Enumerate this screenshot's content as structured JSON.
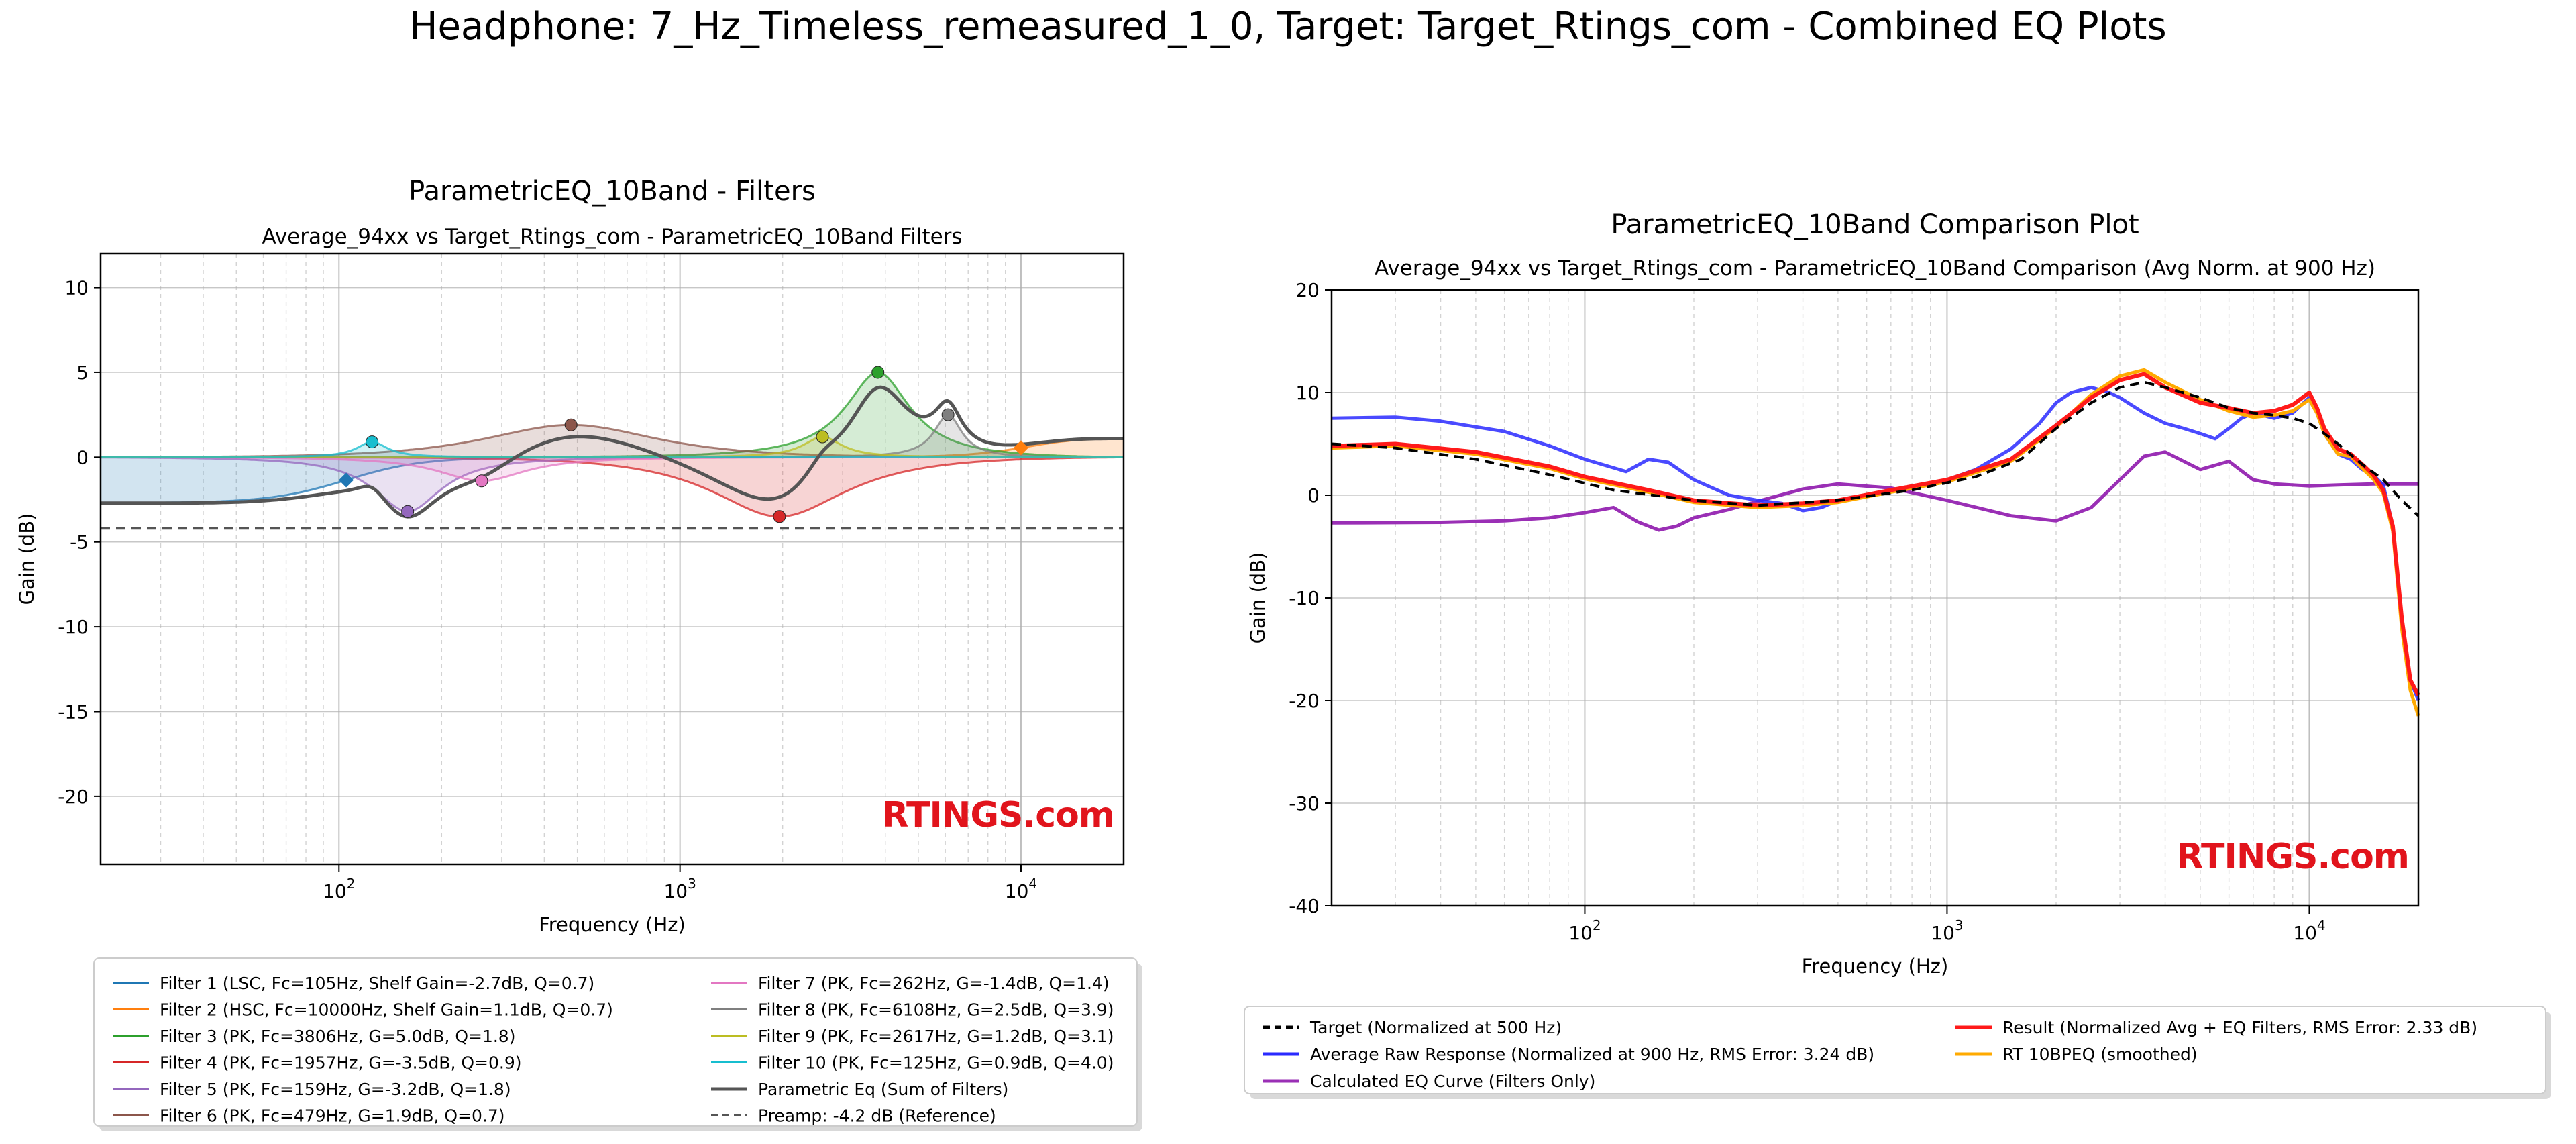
{
  "figure": {
    "title": "Headphone: 7_Hz_Timeless_remeasured_1_0, Target: Target_Rtings_com - Combined EQ Plots",
    "watermark": "RTINGS.com",
    "watermark_color": "#e1141c"
  },
  "chart_data": [
    {
      "type": "line",
      "title": "ParametricEQ_10Band - Filters",
      "subtitle": "Average_94xx vs Target_Rtings_com - ParametricEQ_10Band Filters",
      "xlabel": "Frequency (Hz)",
      "ylabel": "Gain (dB)",
      "xscale": "log",
      "xlim": [
        20,
        20000
      ],
      "ylim": [
        -24,
        12
      ],
      "xticks": [
        {
          "value": 100,
          "base": "10",
          "exp": "2"
        },
        {
          "value": 1000,
          "base": "10",
          "exp": "3"
        },
        {
          "value": 10000,
          "base": "10",
          "exp": "4"
        }
      ],
      "yticks": [
        10,
        5,
        0,
        -5,
        -10,
        -15,
        -20
      ],
      "grid": true,
      "legend_position": "below",
      "legend_columns": 2,
      "filters": [
        {
          "label": "Filter 1 (LSC, Fc=105Hz, Shelf Gain=-2.7dB, Q=0.7)",
          "type": "LSC",
          "fc": 105,
          "gain": -2.7,
          "q": 0.7,
          "color": "#1f77b4"
        },
        {
          "label": "Filter 2 (HSC, Fc=10000Hz, Shelf Gain=1.1dB, Q=0.7)",
          "type": "HSC",
          "fc": 10000,
          "gain": 1.1,
          "q": 0.7,
          "color": "#ff7f0e"
        },
        {
          "label": "Filter 3 (PK, Fc=3806Hz, G=5.0dB, Q=1.8)",
          "type": "PK",
          "fc": 3806,
          "gain": 5.0,
          "q": 1.8,
          "color": "#2ca02c"
        },
        {
          "label": "Filter 4 (PK, Fc=1957Hz, G=-3.5dB, Q=0.9)",
          "type": "PK",
          "fc": 1957,
          "gain": -3.5,
          "q": 0.9,
          "color": "#d62728"
        },
        {
          "label": "Filter 5 (PK, Fc=159Hz, G=-3.2dB, Q=1.8)",
          "type": "PK",
          "fc": 159,
          "gain": -3.2,
          "q": 1.8,
          "color": "#9467bd"
        },
        {
          "label": "Filter 6 (PK, Fc=479Hz, G=1.9dB, Q=0.7)",
          "type": "PK",
          "fc": 479,
          "gain": 1.9,
          "q": 0.7,
          "color": "#8c564b"
        },
        {
          "label": "Filter 7 (PK, Fc=262Hz, G=-1.4dB, Q=1.4)",
          "type": "PK",
          "fc": 262,
          "gain": -1.4,
          "q": 1.4,
          "color": "#e377c2"
        },
        {
          "label": "Filter 8 (PK, Fc=6108Hz, G=2.5dB, Q=3.9)",
          "type": "PK",
          "fc": 6108,
          "gain": 2.5,
          "q": 3.9,
          "color": "#7f7f7f"
        },
        {
          "label": "Filter 9 (PK, Fc=2617Hz, G=1.2dB, Q=3.1)",
          "type": "PK",
          "fc": 2617,
          "gain": 1.2,
          "q": 3.1,
          "color": "#bcbd22"
        },
        {
          "label": "Filter 10 (PK, Fc=125Hz, G=0.9dB, Q=4.0)",
          "type": "PK",
          "fc": 125,
          "gain": 0.9,
          "q": 4.0,
          "color": "#17becf"
        }
      ],
      "sum_label": "Parametric Eq (Sum of Filters)",
      "sum_color": "#555555",
      "preamp_label": "Preamp: -4.2 dB (Reference)",
      "preamp_db": -4.2,
      "preamp_color": "#555555"
    },
    {
      "type": "line",
      "title": "ParametricEQ_10Band Comparison Plot",
      "subtitle": "Average_94xx vs Target_Rtings_com - ParametricEQ_10Band Comparison (Avg Norm. at 900 Hz)",
      "xlabel": "Frequency (Hz)",
      "ylabel": "Gain (dB)",
      "xscale": "log",
      "xlim": [
        20,
        20000
      ],
      "ylim": [
        -40,
        20
      ],
      "xticks": [
        {
          "value": 100,
          "base": "10",
          "exp": "2"
        },
        {
          "value": 1000,
          "base": "10",
          "exp": "3"
        },
        {
          "value": 10000,
          "base": "10",
          "exp": "4"
        }
      ],
      "yticks": [
        20,
        10,
        0,
        -10,
        -20,
        -30,
        -40
      ],
      "grid": true,
      "legend_position": "below",
      "legend_columns": 2,
      "series": [
        {
          "name": "Target (Normalized at 500 Hz)",
          "color": "#000000",
          "dashed": true,
          "width": 4,
          "x": [
            20,
            30,
            50,
            80,
            120,
            200,
            300,
            500,
            800,
            1200,
            1600,
            2000,
            2500,
            3000,
            3500,
            4000,
            5000,
            6000,
            7000,
            8000,
            9000,
            10000,
            11000,
            12000,
            14000,
            16000,
            18000,
            20000
          ],
          "y": [
            5,
            4.6,
            3.5,
            2,
            0.5,
            -0.5,
            -1.0,
            -0.5,
            0.5,
            1.8,
            3.5,
            6.5,
            9.0,
            10.5,
            11.0,
            10.5,
            9.5,
            8.5,
            8.0,
            7.8,
            7.5,
            7.0,
            6.0,
            5.0,
            3.0,
            1.5,
            -0.5,
            -2.0
          ]
        },
        {
          "name": "Average Raw Response (Normalized at 900 Hz, RMS Error: 3.24 dB)",
          "color": "#2a2aff",
          "dashed": false,
          "width": 5,
          "x": [
            20,
            30,
            40,
            60,
            80,
            100,
            130,
            150,
            170,
            200,
            250,
            300,
            350,
            400,
            450,
            500,
            600,
            800,
            1000,
            1200,
            1500,
            1800,
            2000,
            2200,
            2500,
            2800,
            3000,
            3500,
            4000,
            4500,
            5000,
            5500,
            6000,
            6500,
            7000,
            8000,
            9000,
            10000,
            10500,
            11000,
            12000,
            13000,
            14000,
            15000,
            16000,
            17000,
            18000,
            19000,
            20000
          ],
          "y": [
            7.5,
            7.6,
            7.2,
            6.2,
            4.8,
            3.5,
            2.3,
            3.5,
            3.2,
            1.5,
            0.0,
            -0.5,
            -0.8,
            -1.5,
            -1.2,
            -0.5,
            0.0,
            0.8,
            1.5,
            2.5,
            4.5,
            7.0,
            9.0,
            10.0,
            10.5,
            10.0,
            9.5,
            8.0,
            7.0,
            6.5,
            6.0,
            5.5,
            6.5,
            7.5,
            8.0,
            7.5,
            8.0,
            9.5,
            8.0,
            6.0,
            4.0,
            3.5,
            2.5,
            2.0,
            1.0,
            -3.0,
            -12.0,
            -18.0,
            -20.0
          ]
        },
        {
          "name": "Calculated EQ Curve (Filters Only)",
          "color": "#9a2fb5",
          "dashed": false,
          "width": 5,
          "x": [
            20,
            40,
            60,
            80,
            100,
            120,
            140,
            160,
            180,
            200,
            250,
            300,
            400,
            500,
            700,
            1000,
            1500,
            2000,
            2500,
            3000,
            3500,
            4000,
            5000,
            6000,
            7000,
            8000,
            10000,
            12000,
            15000,
            20000
          ],
          "y": [
            -2.7,
            -2.65,
            -2.5,
            -2.2,
            -1.7,
            -1.2,
            -2.6,
            -3.4,
            -3.0,
            -2.2,
            -1.4,
            -0.6,
            0.6,
            1.1,
            0.7,
            -0.5,
            -2.0,
            -2.5,
            -1.2,
            1.5,
            3.8,
            4.2,
            2.5,
            3.3,
            1.5,
            1.1,
            0.9,
            1.0,
            1.1,
            1.1
          ]
        },
        {
          "name": "Result (Normalized Avg + EQ Filters, RMS Error: 2.33 dB)",
          "color": "#ff1a1a",
          "dashed": false,
          "width": 6,
          "x": [
            20,
            30,
            50,
            80,
            100,
            150,
            200,
            300,
            400,
            500,
            700,
            1000,
            1500,
            2000,
            2500,
            3000,
            3500,
            4000,
            5000,
            6000,
            7000,
            8000,
            9000,
            10000,
            10500,
            11000,
            12000,
            13000,
            14000,
            15000,
            16000,
            17000,
            18000,
            19000,
            20000
          ],
          "y": [
            4.8,
            5.0,
            4.2,
            2.8,
            1.8,
            0.5,
            -0.5,
            -1.0,
            -0.8,
            -0.5,
            0.5,
            1.5,
            3.5,
            6.8,
            9.5,
            11.2,
            11.8,
            10.5,
            9.0,
            8.5,
            8.0,
            8.2,
            8.8,
            10.0,
            8.5,
            6.5,
            4.5,
            4.0,
            3.0,
            2.0,
            0.5,
            -3.0,
            -12.0,
            -18.0,
            -19.5
          ]
        },
        {
          "name": "RT 10BPEQ (smoothed)",
          "color": "#ffaa00",
          "dashed": false,
          "width": 5,
          "x": [
            20,
            30,
            50,
            80,
            100,
            150,
            200,
            300,
            400,
            500,
            700,
            1000,
            1500,
            2000,
            2500,
            3000,
            3500,
            4000,
            5000,
            6000,
            7000,
            8000,
            9000,
            10000,
            10500,
            11000,
            12000,
            13000,
            14000,
            15000,
            16000,
            17000,
            18000,
            19000,
            20000
          ],
          "y": [
            4.6,
            4.8,
            4.0,
            2.6,
            1.6,
            0.3,
            -0.7,
            -1.2,
            -1.0,
            -0.7,
            0.3,
            1.3,
            3.3,
            6.6,
            9.8,
            11.6,
            12.2,
            11.0,
            9.3,
            8.2,
            7.6,
            7.8,
            8.2,
            9.3,
            8.0,
            6.0,
            4.0,
            3.8,
            2.6,
            1.6,
            0.2,
            -3.5,
            -13.0,
            -19.0,
            -21.5
          ]
        }
      ],
      "legend_order": [
        0,
        3,
        1,
        4,
        2
      ]
    }
  ]
}
